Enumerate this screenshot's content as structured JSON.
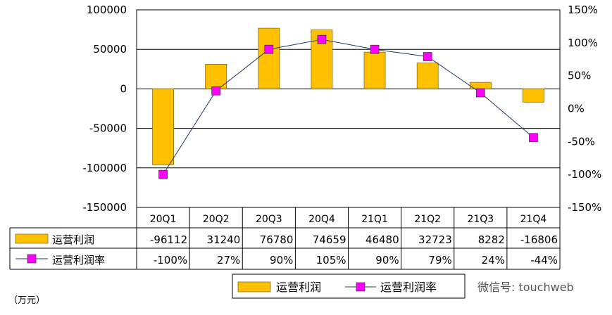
{
  "chart_data": {
    "type": "bar",
    "categories": [
      "20Q1",
      "20Q2",
      "20Q3",
      "20Q4",
      "21Q1",
      "21Q2",
      "21Q3",
      "21Q4"
    ],
    "series": [
      {
        "name": "运营利润",
        "kind": "bar",
        "axis": "left",
        "color": "#FFC000",
        "values": [
          -96112,
          31240,
          76780,
          74659,
          46480,
          32723,
          8282,
          -16806
        ],
        "labels": [
          "-96112",
          "31240",
          "76780",
          "74659",
          "46480",
          "32723",
          "8282",
          "-16806"
        ]
      },
      {
        "name": "运营利润率",
        "kind": "line",
        "axis": "right",
        "color": "#1F3864",
        "marker_color": "#FF00FF",
        "values": [
          -100,
          27,
          90,
          105,
          90,
          79,
          24,
          -44
        ],
        "labels": [
          "-100%",
          "27%",
          "90%",
          "105%",
          "90%",
          "79%",
          "24%",
          "-44%"
        ]
      }
    ],
    "y_left": {
      "ylim": [
        -150000,
        100000
      ],
      "ticks": [
        100000,
        50000,
        0,
        -50000,
        -100000,
        -150000
      ],
      "tick_labels": [
        "100000",
        "50000",
        "0",
        "-50000",
        "-100000",
        "-150000"
      ]
    },
    "y_right": {
      "ylim": [
        -150,
        150
      ],
      "ticks": [
        150,
        100,
        50,
        0,
        -50,
        -100,
        -150
      ],
      "tick_labels": [
        "150%",
        "100%",
        "50%",
        "0%",
        "-50%",
        "-100%",
        "-150%"
      ]
    },
    "grid": true,
    "data_table": true,
    "legend_position": "bottom",
    "legend_labels": [
      "运营利润",
      "运营利润率"
    ],
    "unit_label": "（万元）"
  },
  "watermark": "微信号: touchweb"
}
